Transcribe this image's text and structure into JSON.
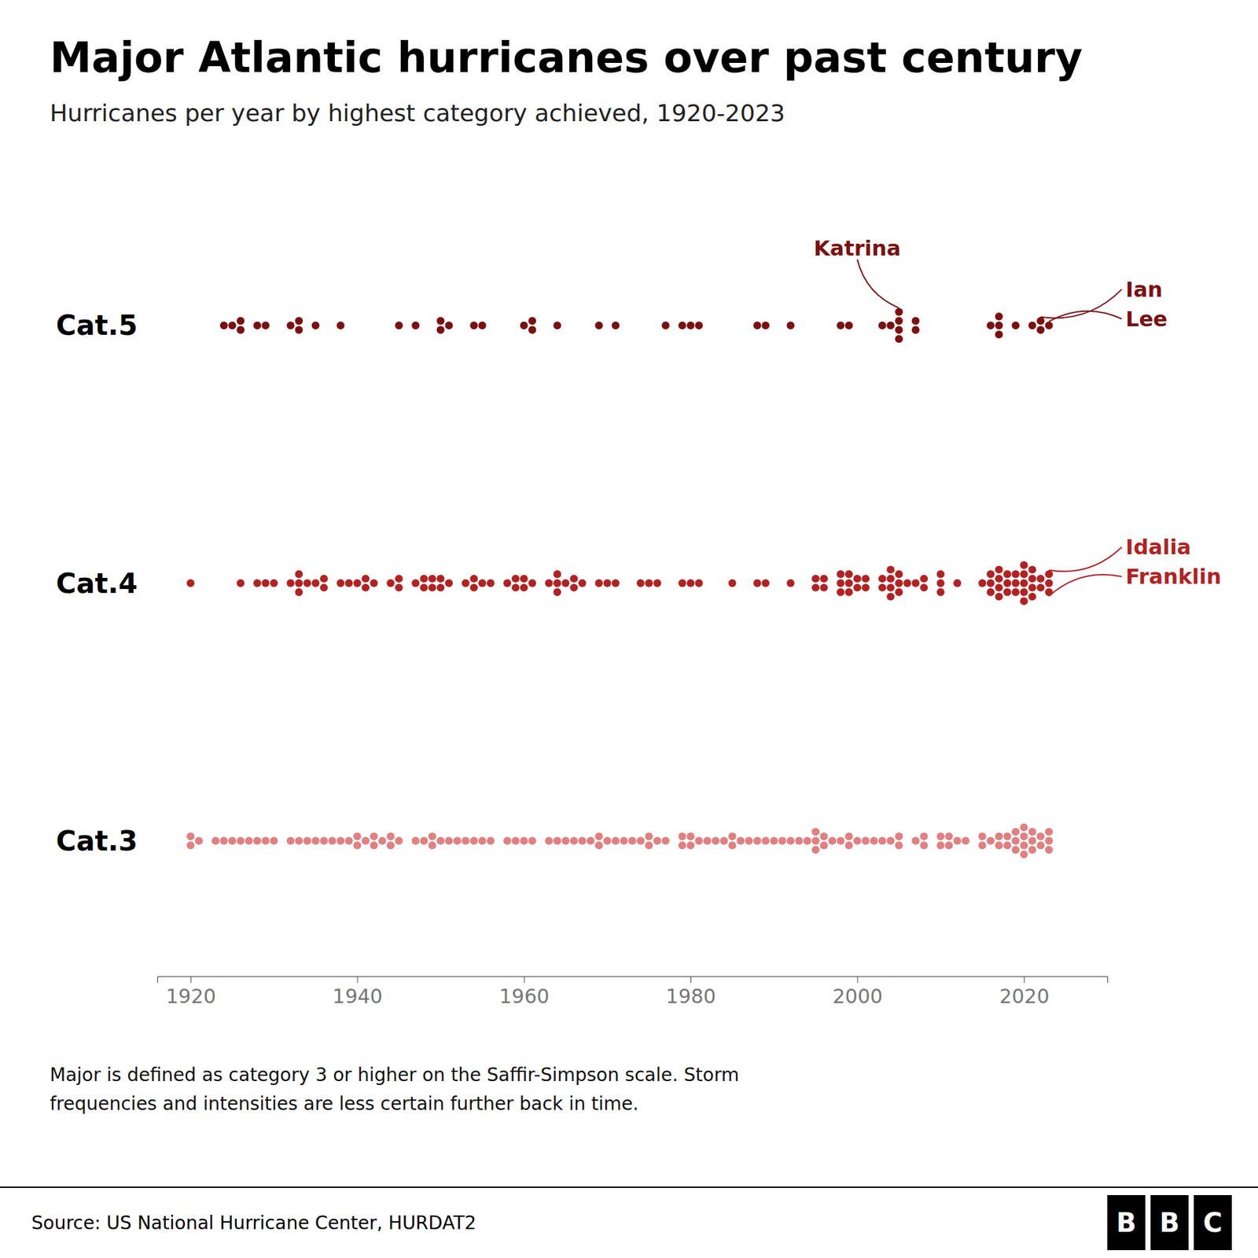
{
  "chart_data": {
    "type": "dot",
    "title": "Major Atlantic hurricanes over past century",
    "subtitle": "Hurricanes per year by highest category achieved, 1920-2023",
    "footnote": "Major is defined as category 3 or higher on the Saffir-Simpson scale. Storm\nfrequencies and intensities are less certain further back in time.",
    "source": "Source: US National Hurricane Center, HURDAT2",
    "logo": "BBC",
    "xlim": [
      1916,
      2030
    ],
    "xticks": [
      1920,
      1940,
      1960,
      1980,
      2000,
      2020
    ],
    "grid": false,
    "series": [
      {
        "name": "Cat.5",
        "color": "#7B1010",
        "x": [
          1924,
          1925,
          1926,
          1928,
          1929,
          1932,
          1933,
          1935,
          1938,
          1945,
          1947,
          1950,
          1951,
          1954,
          1955,
          1960,
          1961,
          1964,
          1969,
          1971,
          1977,
          1979,
          1980,
          1981,
          1988,
          1989,
          1992,
          1998,
          1999,
          2003,
          2004,
          2005,
          2007,
          2016,
          2017,
          2019,
          2021,
          2022,
          2023
        ],
        "values": [
          1,
          1,
          2,
          1,
          1,
          1,
          2,
          1,
          1,
          1,
          1,
          2,
          1,
          1,
          1,
          1,
          2,
          1,
          1,
          1,
          1,
          1,
          1,
          1,
          1,
          1,
          1,
          1,
          1,
          1,
          1,
          4,
          2,
          1,
          3,
          1,
          1,
          2,
          1
        ]
      },
      {
        "name": "Cat.4",
        "color": "#B22222",
        "x": [
          1920,
          1926,
          1928,
          1929,
          1930,
          1932,
          1933,
          1934,
          1935,
          1936,
          1938,
          1939,
          1940,
          1941,
          1942,
          1944,
          1945,
          1947,
          1948,
          1949,
          1950,
          1951,
          1953,
          1954,
          1955,
          1956,
          1958,
          1959,
          1960,
          1961,
          1963,
          1964,
          1965,
          1966,
          1967,
          1969,
          1970,
          1971,
          1974,
          1975,
          1976,
          1979,
          1980,
          1981,
          1985,
          1988,
          1989,
          1992,
          1995,
          1996,
          1998,
          1999,
          2000,
          2001,
          2003,
          2004,
          2005,
          2006,
          2007,
          2008,
          2010,
          2012,
          2015,
          2016,
          2017,
          2018,
          2019,
          2020,
          2021,
          2022,
          2023
        ],
        "values": [
          1,
          1,
          1,
          1,
          1,
          1,
          3,
          1,
          1,
          2,
          1,
          1,
          1,
          2,
          1,
          1,
          2,
          1,
          2,
          2,
          2,
          1,
          1,
          2,
          1,
          1,
          1,
          2,
          2,
          1,
          1,
          3,
          1,
          2,
          1,
          1,
          1,
          1,
          1,
          1,
          1,
          1,
          1,
          1,
          1,
          1,
          1,
          1,
          2,
          2,
          3,
          3,
          2,
          2,
          2,
          4,
          3,
          1,
          1,
          2,
          3,
          1,
          1,
          3,
          4,
          3,
          3,
          5,
          4,
          2,
          3
        ]
      },
      {
        "name": "Cat.3",
        "color": "#E08080",
        "x": [
          1920,
          1921,
          1923,
          1924,
          1925,
          1926,
          1927,
          1928,
          1929,
          1930,
          1932,
          1933,
          1934,
          1935,
          1936,
          1937,
          1938,
          1939,
          1940,
          1941,
          1942,
          1943,
          1944,
          1945,
          1947,
          1948,
          1949,
          1950,
          1951,
          1952,
          1953,
          1954,
          1955,
          1956,
          1958,
          1959,
          1960,
          1961,
          1963,
          1964,
          1965,
          1966,
          1967,
          1968,
          1969,
          1970,
          1971,
          1972,
          1973,
          1974,
          1975,
          1976,
          1977,
          1979,
          1980,
          1981,
          1982,
          1983,
          1984,
          1985,
          1986,
          1987,
          1988,
          1989,
          1990,
          1991,
          1992,
          1993,
          1994,
          1995,
          1996,
          1997,
          1998,
          1999,
          2000,
          2001,
          2002,
          2003,
          2004,
          2005,
          2007,
          2008,
          2010,
          2011,
          2012,
          2013,
          2015,
          2016,
          2017,
          2018,
          2019,
          2020,
          2021,
          2022,
          2023
        ],
        "values": [
          2,
          1,
          1,
          1,
          1,
          1,
          1,
          1,
          1,
          1,
          1,
          1,
          1,
          1,
          1,
          1,
          1,
          1,
          2,
          1,
          2,
          1,
          2,
          1,
          1,
          1,
          2,
          1,
          1,
          1,
          1,
          1,
          1,
          1,
          1,
          1,
          1,
          1,
          1,
          1,
          1,
          1,
          1,
          1,
          2,
          1,
          1,
          1,
          1,
          1,
          2,
          1,
          1,
          2,
          2,
          1,
          1,
          1,
          1,
          2,
          1,
          1,
          1,
          1,
          1,
          1,
          1,
          1,
          1,
          3,
          2,
          1,
          1,
          2,
          1,
          1,
          1,
          1,
          1,
          2,
          1,
          2,
          2,
          2,
          1,
          1,
          2,
          1,
          2,
          2,
          3,
          4,
          3,
          2,
          3
        ]
      }
    ],
    "annotations": [
      {
        "text": "Katrina",
        "series": "Cat.5",
        "x": 2005
      },
      {
        "text": "Ian",
        "series": "Cat.5",
        "x": 2022
      },
      {
        "text": "Lee",
        "series": "Cat.5",
        "x": 2023
      },
      {
        "text": "Idalia",
        "series": "Cat.4",
        "x": 2023
      },
      {
        "text": "Franklin",
        "series": "Cat.4",
        "x": 2023
      }
    ]
  }
}
